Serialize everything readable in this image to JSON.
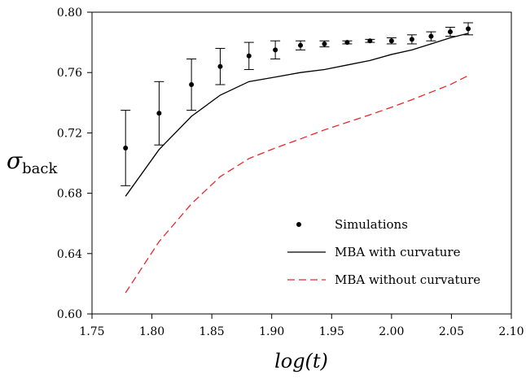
{
  "chart_data": {
    "type": "line",
    "xlabel": "log(t)",
    "ylabel": "σback",
    "xlim": [
      1.75,
      2.1
    ],
    "ylim": [
      0.6,
      0.8
    ],
    "xticks": [
      "1.75",
      "1.80",
      "1.85",
      "1.90",
      "1.95",
      "2.00",
      "2.05",
      "2.10"
    ],
    "yticks": [
      "0.60",
      "0.64",
      "0.68",
      "0.72",
      "0.76",
      "0.80"
    ],
    "grid": false,
    "legend_position": "bottom-right",
    "series": [
      {
        "name": "Simulations",
        "kind": "points-with-error-bars",
        "color": "#000000",
        "x": [
          1.778,
          1.806,
          1.833,
          1.857,
          1.881,
          1.903,
          1.924,
          1.944,
          1.963,
          1.982,
          2.0,
          2.017,
          2.033,
          2.049,
          2.064
        ],
        "y": [
          0.71,
          0.733,
          0.752,
          0.764,
          0.771,
          0.775,
          0.778,
          0.779,
          0.78,
          0.781,
          0.781,
          0.782,
          0.784,
          0.787,
          0.789
        ],
        "error": [
          0.025,
          0.021,
          0.017,
          0.012,
          0.009,
          0.006,
          0.003,
          0.002,
          0.001,
          0.001,
          0.002,
          0.003,
          0.003,
          0.003,
          0.004
        ]
      },
      {
        "name": "MBA with curvature",
        "kind": "line",
        "color": "#000000",
        "dash": "solid",
        "x": [
          1.778,
          1.806,
          1.833,
          1.857,
          1.881,
          1.903,
          1.924,
          1.944,
          1.963,
          1.982,
          2.0,
          2.017,
          2.033,
          2.049,
          2.064
        ],
        "y": [
          0.678,
          0.709,
          0.731,
          0.745,
          0.754,
          0.757,
          0.76,
          0.762,
          0.765,
          0.768,
          0.772,
          0.775,
          0.779,
          0.783,
          0.786
        ]
      },
      {
        "name": "MBA without curvature",
        "kind": "line",
        "color": "#e8262c",
        "dash": "dashed",
        "x": [
          1.778,
          1.806,
          1.833,
          1.857,
          1.881,
          1.903,
          1.924,
          1.944,
          1.963,
          1.982,
          2.0,
          2.017,
          2.033,
          2.049,
          2.064
        ],
        "y": [
          0.614,
          0.648,
          0.673,
          0.691,
          0.703,
          0.71,
          0.716,
          0.722,
          0.727,
          0.732,
          0.737,
          0.742,
          0.747,
          0.752,
          0.758
        ]
      }
    ]
  }
}
